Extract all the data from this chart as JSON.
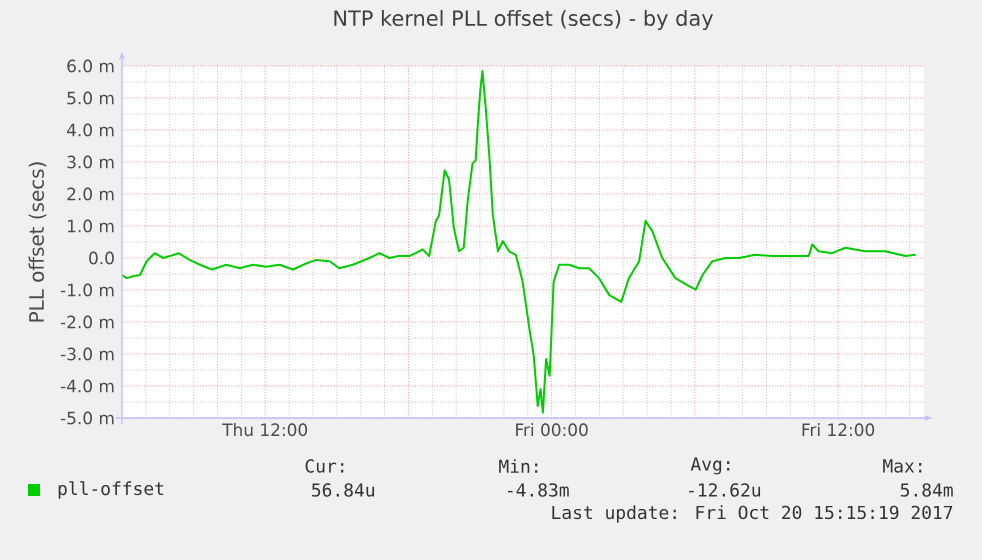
{
  "chart_data": {
    "type": "line",
    "title": "NTP kernel PLL offset (secs) - by day",
    "ylabel": "PLL offset (secs)",
    "xlim": [
      "2017-10-19T06:00",
      "2017-10-20T15:36"
    ],
    "xticks": [
      {
        "value": "2017-10-19T12:00",
        "label": "Thu 12:00"
      },
      {
        "value": "2017-10-19T18:00",
        "label": null
      },
      {
        "value": "2017-10-20T00:00",
        "label": "Fri 00:00"
      },
      {
        "value": "2017-10-20T06:00",
        "label": null
      },
      {
        "value": "2017-10-20T12:00",
        "label": "Fri 12:00"
      }
    ],
    "ylim": [
      -5,
      6
    ],
    "yticks": [
      {
        "value": -5,
        "label": "-5.0 m"
      },
      {
        "value": -4,
        "label": "-4.0 m"
      },
      {
        "value": -3,
        "label": "-3.0 m"
      },
      {
        "value": -2,
        "label": "-2.0 m"
      },
      {
        "value": -1,
        "label": "-1.0 m"
      },
      {
        "value": 0,
        "label": "0.0"
      },
      {
        "value": 1,
        "label": "1.0 m"
      },
      {
        "value": 2,
        "label": "2.0 m"
      },
      {
        "value": 3,
        "label": "3.0 m"
      },
      {
        "value": 4,
        "label": "4.0 m"
      },
      {
        "value": 5,
        "label": "5.0 m"
      },
      {
        "value": 6,
        "label": "6.0 m"
      }
    ],
    "grid": true,
    "legend": "bottom",
    "x": [
      "2017-10-19T06:00",
      "2017-10-19T06:12",
      "2017-10-19T06:28",
      "2017-10-19T06:45",
      "2017-10-19T07:02",
      "2017-10-19T07:22",
      "2017-10-19T07:44",
      "2017-10-19T08:00",
      "2017-10-19T08:22",
      "2017-10-19T08:50",
      "2017-10-19T09:16",
      "2017-10-19T09:46",
      "2017-10-19T10:22",
      "2017-10-19T10:56",
      "2017-10-19T11:29",
      "2017-10-19T12:02",
      "2017-10-19T12:36",
      "2017-10-19T13:10",
      "2017-10-19T13:43",
      "2017-10-19T14:08",
      "2017-10-19T14:42",
      "2017-10-19T15:06",
      "2017-10-19T15:40",
      "2017-10-19T16:22",
      "2017-10-19T16:47",
      "2017-10-19T17:12",
      "2017-10-19T17:36",
      "2017-10-19T18:02",
      "2017-10-19T18:18",
      "2017-10-19T18:36",
      "2017-10-19T18:52",
      "2017-10-19T19:09",
      "2017-10-19T19:17",
      "2017-10-19T19:31",
      "2017-10-19T19:42",
      "2017-10-19T19:54",
      "2017-10-19T20:07",
      "2017-10-19T20:19",
      "2017-10-19T20:29",
      "2017-10-19T20:41",
      "2017-10-19T20:49",
      "2017-10-19T20:54",
      "2017-10-19T21:00",
      "2017-10-19T21:06",
      "2017-10-19T21:14",
      "2017-10-19T21:23",
      "2017-10-19T21:32",
      "2017-10-19T21:45",
      "2017-10-19T21:57",
      "2017-10-19T22:13",
      "2017-10-19T22:30",
      "2017-10-19T22:47",
      "2017-10-19T23:04",
      "2017-10-19T23:15",
      "2017-10-19T23:25",
      "2017-10-19T23:32",
      "2017-10-19T23:38",
      "2017-10-19T23:46",
      "2017-10-19T23:55",
      "2017-10-20T00:05",
      "2017-10-20T00:19",
      "2017-10-20T00:44",
      "2017-10-20T01:09",
      "2017-10-20T01:34",
      "2017-10-20T01:59",
      "2017-10-20T02:25",
      "2017-10-20T02:55",
      "2017-10-20T03:14",
      "2017-10-20T03:40",
      "2017-10-20T03:56",
      "2017-10-20T04:13",
      "2017-10-20T04:38",
      "2017-10-20T05:11",
      "2017-10-20T05:40",
      "2017-10-20T06:02",
      "2017-10-20T06:19",
      "2017-10-20T06:44",
      "2017-10-20T07:17",
      "2017-10-20T07:51",
      "2017-10-20T08:32",
      "2017-10-20T09:14",
      "2017-10-20T10:05",
      "2017-10-20T10:46",
      "2017-10-20T10:55",
      "2017-10-20T11:11",
      "2017-10-20T11:45",
      "2017-10-20T12:18",
      "2017-10-20T13:08",
      "2017-10-20T13:59",
      "2017-10-20T14:49",
      "2017-10-20T15:15"
    ],
    "series": [
      {
        "name": "pll-offset",
        "color": "#00cc00",
        "values": [
          -0.53,
          -0.63,
          -0.57,
          -0.53,
          -0.1,
          0.15,
          0,
          0.06,
          0.15,
          -0.06,
          -0.21,
          -0.36,
          -0.21,
          -0.32,
          -0.21,
          -0.27,
          -0.21,
          -0.36,
          -0.17,
          -0.06,
          -0.1,
          -0.32,
          -0.21,
          0,
          0.15,
          0,
          0.06,
          0.06,
          0.15,
          0.27,
          0.06,
          1.16,
          1.33,
          2.74,
          2.46,
          0.95,
          0.21,
          0.32,
          1.79,
          2.95,
          3.05,
          4.1,
          5.16,
          5.84,
          4.74,
          3.26,
          1.37,
          0.21,
          0.53,
          0.21,
          0.1,
          -0.74,
          -2.21,
          -3.05,
          -4.63,
          -4.1,
          -4.83,
          -3.16,
          -3.68,
          -0.74,
          -0.21,
          -0.21,
          -0.32,
          -0.32,
          -0.63,
          -1.16,
          -1.37,
          -0.63,
          -0.1,
          1.16,
          0.84,
          0,
          -0.63,
          -0.84,
          -0.99,
          -0.53,
          -0.1,
          0,
          0,
          0.1,
          0.06,
          0.06,
          0.06,
          0.42,
          0.21,
          0.15,
          0.32,
          0.21,
          0.21,
          0.06,
          0.1
        ]
      }
    ],
    "annotations": [
      "Cur:",
      "Min:",
      "Avg:",
      "Max:",
      "56.84u",
      "-4.83m",
      "-12.62u",
      "5.84m",
      "Last update: Fri Oct 20 15:15:19 2017"
    ]
  }
}
